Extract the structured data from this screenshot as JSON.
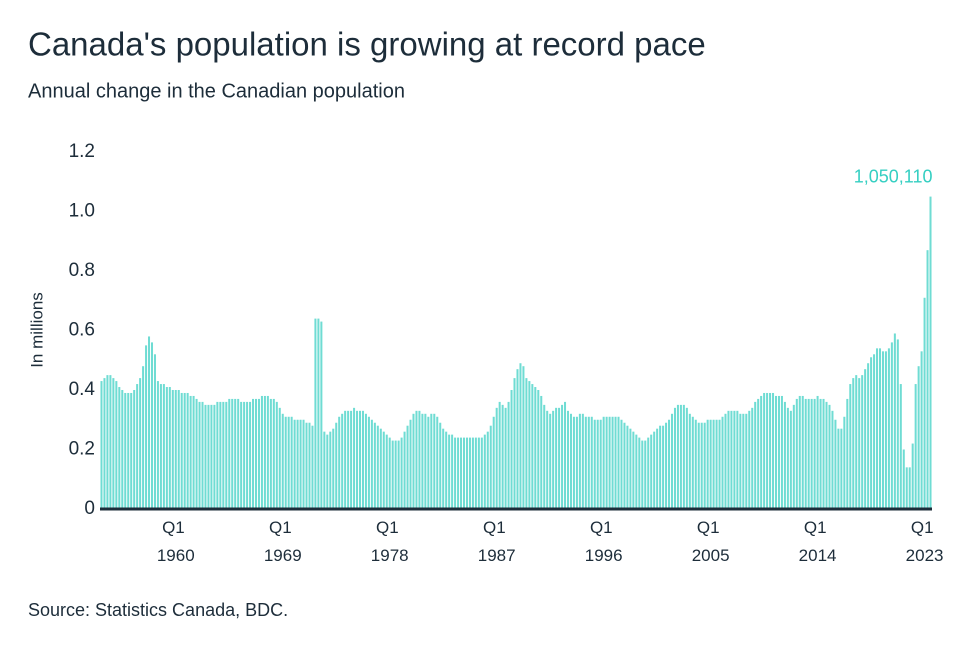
{
  "chart_data": {
    "type": "bar",
    "title": "Canada's population is growing at record pace",
    "subtitle": "Annual change in the Canadian population",
    "y_label": "In millions",
    "source": "Source: Statistics Canada, BDC.",
    "color": "#6fdcd3",
    "label_color": "#35cfc2",
    "grid": false,
    "ylim": [
      0,
      1.2
    ],
    "yticks": [
      0,
      0.2,
      0.4,
      0.6,
      0.8,
      {
        "value": 1,
        "label": "1.0"
      },
      1.2
    ],
    "categories": [
      null,
      null,
      null,
      null,
      null,
      null,
      null,
      null,
      null,
      null,
      null,
      null,
      null,
      null,
      null,
      null,
      null,
      null,
      null,
      null,
      null,
      null,
      null,
      null,
      null,
      "Q1 1960",
      null,
      null,
      null,
      null,
      null,
      null,
      null,
      null,
      null,
      null,
      null,
      null,
      null,
      null,
      null,
      null,
      null,
      null,
      null,
      null,
      null,
      null,
      null,
      null,
      null,
      null,
      null,
      null,
      null,
      null,
      null,
      null,
      null,
      null,
      null,
      "Q1 1969",
      null,
      null,
      null,
      null,
      null,
      null,
      null,
      null,
      null,
      null,
      null,
      null,
      null,
      null,
      null,
      null,
      null,
      null,
      null,
      null,
      null,
      null,
      null,
      null,
      null,
      null,
      null,
      null,
      null,
      null,
      null,
      null,
      null,
      null,
      null,
      "Q1 1978",
      null,
      null,
      null,
      null,
      null,
      null,
      null,
      null,
      null,
      null,
      null,
      null,
      null,
      null,
      null,
      null,
      null,
      null,
      null,
      null,
      null,
      null,
      null,
      null,
      null,
      null,
      null,
      null,
      null,
      null,
      null,
      null,
      null,
      null,
      null,
      "Q1 1987",
      null,
      null,
      null,
      null,
      null,
      null,
      null,
      null,
      null,
      null,
      null,
      null,
      null,
      null,
      null,
      null,
      null,
      null,
      null,
      null,
      null,
      null,
      null,
      null,
      null,
      null,
      null,
      null,
      null,
      null,
      null,
      null,
      null,
      null,
      null,
      "Q1 1996",
      null,
      null,
      null,
      null,
      null,
      null,
      null,
      null,
      null,
      null,
      null,
      null,
      null,
      null,
      null,
      null,
      null,
      null,
      null,
      null,
      null,
      null,
      null,
      null,
      null,
      null,
      null,
      null,
      null,
      null,
      null,
      null,
      null,
      null,
      null,
      "Q1 2005",
      null,
      null,
      null,
      null,
      null,
      null,
      null,
      null,
      null,
      null,
      null,
      null,
      null,
      null,
      null,
      null,
      null,
      null,
      null,
      null,
      null,
      null,
      null,
      null,
      null,
      null,
      null,
      null,
      null,
      null,
      null,
      null,
      null,
      null,
      null,
      "Q1 2014",
      null,
      null,
      null,
      null,
      null,
      null,
      null,
      null,
      null,
      null,
      null,
      null,
      null,
      null,
      null,
      null,
      null,
      null,
      null,
      null,
      null,
      null,
      null,
      null,
      null,
      null,
      null,
      null,
      null,
      null,
      null,
      null,
      null,
      null,
      null,
      "Q1 2023",
      null,
      null
    ],
    "values": [
      0.43,
      0.44,
      0.45,
      0.45,
      0.44,
      0.43,
      0.41,
      0.4,
      0.39,
      0.39,
      0.39,
      0.4,
      0.42,
      0.44,
      0.48,
      0.55,
      0.58,
      0.56,
      0.52,
      0.43,
      0.42,
      0.42,
      0.41,
      0.41,
      0.4,
      0.4,
      0.4,
      0.39,
      0.39,
      0.39,
      0.38,
      0.38,
      0.37,
      0.36,
      0.36,
      0.35,
      0.35,
      0.35,
      0.35,
      0.36,
      0.36,
      0.36,
      0.36,
      0.37,
      0.37,
      0.37,
      0.37,
      0.36,
      0.36,
      0.36,
      0.36,
      0.37,
      0.37,
      0.37,
      0.38,
      0.38,
      0.38,
      0.37,
      0.37,
      0.36,
      0.34,
      0.32,
      0.31,
      0.31,
      0.31,
      0.3,
      0.3,
      0.3,
      0.3,
      0.29,
      0.29,
      0.28,
      0.64,
      0.64,
      0.63,
      0.26,
      0.25,
      0.26,
      0.27,
      0.29,
      0.31,
      0.32,
      0.33,
      0.33,
      0.33,
      0.34,
      0.33,
      0.33,
      0.33,
      0.32,
      0.31,
      0.3,
      0.29,
      0.28,
      0.27,
      0.26,
      0.25,
      0.24,
      0.23,
      0.23,
      0.23,
      0.24,
      0.26,
      0.28,
      0.3,
      0.32,
      0.33,
      0.33,
      0.32,
      0.32,
      0.31,
      0.32,
      0.32,
      0.31,
      0.29,
      0.27,
      0.26,
      0.25,
      0.25,
      0.24,
      0.24,
      0.24,
      0.24,
      0.24,
      0.24,
      0.24,
      0.24,
      0.24,
      0.24,
      0.25,
      0.26,
      0.28,
      0.31,
      0.34,
      0.36,
      0.35,
      0.34,
      0.36,
      0.4,
      0.44,
      0.47,
      0.49,
      0.48,
      0.44,
      0.43,
      0.42,
      0.41,
      0.4,
      0.38,
      0.35,
      0.33,
      0.32,
      0.33,
      0.34,
      0.34,
      0.35,
      0.36,
      0.33,
      0.32,
      0.31,
      0.31,
      0.32,
      0.32,
      0.31,
      0.31,
      0.31,
      0.3,
      0.3,
      0.3,
      0.31,
      0.31,
      0.31,
      0.31,
      0.31,
      0.31,
      0.3,
      0.29,
      0.28,
      0.27,
      0.26,
      0.25,
      0.24,
      0.23,
      0.23,
      0.24,
      0.25,
      0.26,
      0.27,
      0.28,
      0.28,
      0.29,
      0.3,
      0.32,
      0.34,
      0.35,
      0.35,
      0.35,
      0.34,
      0.32,
      0.31,
      0.3,
      0.29,
      0.29,
      0.29,
      0.3,
      0.3,
      0.3,
      0.3,
      0.3,
      0.31,
      0.32,
      0.33,
      0.33,
      0.33,
      0.33,
      0.32,
      0.32,
      0.32,
      0.33,
      0.34,
      0.36,
      0.37,
      0.38,
      0.39,
      0.39,
      0.39,
      0.39,
      0.38,
      0.38,
      0.38,
      0.36,
      0.34,
      0.33,
      0.35,
      0.37,
      0.38,
      0.38,
      0.37,
      0.37,
      0.37,
      0.37,
      0.38,
      0.37,
      0.37,
      0.36,
      0.35,
      0.33,
      0.3,
      0.27,
      0.27,
      0.31,
      0.37,
      0.42,
      0.44,
      0.45,
      0.44,
      0.45,
      0.47,
      0.49,
      0.51,
      0.52,
      0.54,
      0.54,
      0.53,
      0.53,
      0.54,
      0.56,
      0.59,
      0.57,
      0.42,
      0.2,
      0.14,
      0.14,
      0.22,
      0.42,
      0.48,
      0.53,
      0.71,
      0.87,
      1.05011
    ],
    "value_labels": [
      null,
      null,
      null,
      null,
      null,
      null,
      null,
      null,
      null,
      null,
      null,
      null,
      null,
      null,
      null,
      null,
      null,
      null,
      null,
      null,
      null,
      null,
      null,
      null,
      null,
      null,
      null,
      null,
      null,
      null,
      null,
      null,
      null,
      null,
      null,
      null,
      null,
      null,
      null,
      null,
      null,
      null,
      null,
      null,
      null,
      null,
      null,
      null,
      null,
      null,
      null,
      null,
      null,
      null,
      null,
      null,
      null,
      null,
      null,
      null,
      null,
      null,
      null,
      null,
      null,
      null,
      null,
      null,
      null,
      null,
      null,
      null,
      null,
      null,
      null,
      null,
      null,
      null,
      null,
      null,
      null,
      null,
      null,
      null,
      null,
      null,
      null,
      null,
      null,
      null,
      null,
      null,
      null,
      null,
      null,
      null,
      null,
      null,
      null,
      null,
      null,
      null,
      null,
      null,
      null,
      null,
      null,
      null,
      null,
      null,
      null,
      null,
      null,
      null,
      null,
      null,
      null,
      null,
      null,
      null,
      null,
      null,
      null,
      null,
      null,
      null,
      null,
      null,
      null,
      null,
      null,
      null,
      null,
      null,
      null,
      null,
      null,
      null,
      null,
      null,
      null,
      null,
      null,
      null,
      null,
      null,
      null,
      null,
      null,
      null,
      null,
      null,
      null,
      null,
      null,
      null,
      null,
      null,
      null,
      null,
      null,
      null,
      null,
      null,
      null,
      null,
      null,
      null,
      null,
      null,
      null,
      null,
      null,
      null,
      null,
      null,
      null,
      null,
      null,
      null,
      null,
      null,
      null,
      null,
      null,
      null,
      null,
      null,
      null,
      null,
      null,
      null,
      null,
      null,
      null,
      null,
      null,
      null,
      null,
      null,
      null,
      null,
      null,
      null,
      null,
      null,
      null,
      null,
      null,
      null,
      null,
      null,
      null,
      null,
      null,
      null,
      null,
      null,
      null,
      null,
      null,
      null,
      null,
      null,
      null,
      null,
      null,
      null,
      null,
      null,
      null,
      null,
      null,
      null,
      null,
      null,
      null,
      null,
      null,
      null,
      null,
      null,
      null,
      null,
      null,
      null,
      null,
      null,
      null,
      null,
      null,
      null,
      null,
      null,
      null,
      null,
      null,
      null,
      null,
      null,
      null,
      null,
      null,
      null,
      null,
      null,
      null,
      null,
      null,
      null,
      null,
      null,
      null,
      null,
      null,
      null,
      null,
      null,
      null,
      "1,050,110"
    ]
  }
}
